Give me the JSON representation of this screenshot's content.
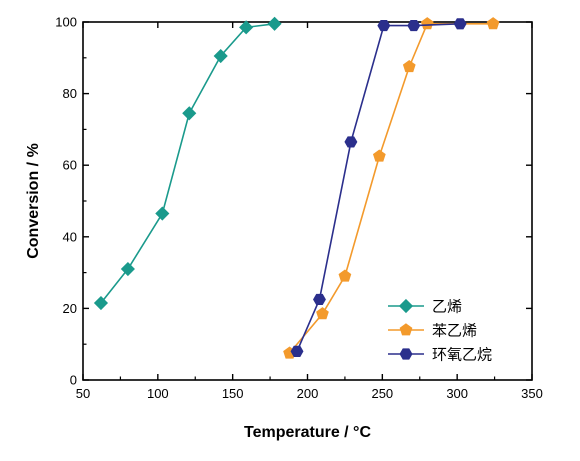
{
  "chart_data": {
    "type": "line",
    "title": "",
    "xlabel": "Temperature / °C",
    "ylabel": "Conversion / %",
    "xlim": [
      50,
      350
    ],
    "ylim": [
      0,
      100
    ],
    "xticks": [
      50,
      100,
      150,
      200,
      250,
      300,
      350
    ],
    "yticks": [
      0,
      20,
      40,
      60,
      80,
      100
    ],
    "xtick_labels": [
      "50",
      "100",
      "150",
      "200",
      "250",
      "300",
      "350"
    ],
    "ytick_labels": [
      "0",
      "20",
      "40",
      "60",
      "80",
      "100"
    ],
    "grid": false,
    "legend_position": "bottom-right",
    "series": [
      {
        "name": "乙烯",
        "color": "#1a9a8c",
        "marker": "diamond",
        "x": [
          62,
          80,
          103,
          121,
          142,
          159,
          178
        ],
        "y": [
          21.5,
          31,
          46.5,
          74.5,
          90.5,
          98.5,
          99.5
        ]
      },
      {
        "name": "苯乙烯",
        "color": "#f39a2c",
        "marker": "pentagon",
        "x": [
          188,
          210,
          225,
          248,
          268,
          280,
          324
        ],
        "y": [
          7.5,
          18.5,
          29,
          62.5,
          87.5,
          99.5,
          99.5
        ]
      },
      {
        "name": "环氧乙烷",
        "color": "#2b2f8c",
        "marker": "hexagon",
        "x": [
          193,
          208,
          229,
          251,
          271,
          302
        ],
        "y": [
          8,
          22.5,
          66.5,
          99,
          99,
          99.5
        ]
      }
    ]
  }
}
